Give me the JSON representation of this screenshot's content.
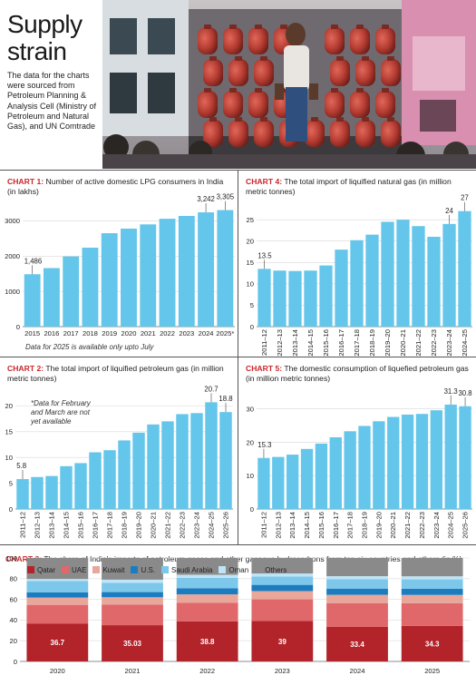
{
  "header": {
    "title_line1": "Supply",
    "title_line2": "strain",
    "subtitle": "The data for the charts were sourced from Petroleum Planning & Analysis Cell (Ministry of Petroleum and Natural Gas), and UN Comtrade"
  },
  "colors": {
    "bar_blue": "#64c6ea",
    "accent_red": "#c8262b",
    "qatar": "#b2232a",
    "uae": "#e0676a",
    "kuwait": "#e8a79a",
    "us": "#1b7cbf",
    "saudi_arabia": "#7dc7ea",
    "oman": "#bfe4f5",
    "others": "#8a8a8a"
  },
  "chart_data": [
    {
      "id": "chart1",
      "type": "bar",
      "label": "CHART 1:",
      "title": "Number of active domestic LPG consumers in India (in lakhs)",
      "categories": [
        "2015",
        "2016",
        "2017",
        "2018",
        "2019",
        "2020",
        "2021",
        "2022",
        "2023",
        "2024",
        "2025*"
      ],
      "values": [
        1486,
        1660,
        1990,
        2240,
        2650,
        2780,
        2900,
        3060,
        3140,
        3242,
        3305
      ],
      "value_labels": {
        "0": "1,486",
        "9": "3,242",
        "10": "3,305"
      },
      "yticks": [
        0,
        1000,
        2000,
        3000
      ],
      "ytick_labels": [
        "0",
        "1000",
        "2000",
        "3000"
      ],
      "ylim": [
        0,
        3500
      ],
      "grid": true,
      "note": "Data for 2025 is available only upto July"
    },
    {
      "id": "chart4",
      "type": "bar",
      "label": "CHART 4:",
      "title": "The total import of liquified natural gas (in million metric tonnes)",
      "categories": [
        "2011–12",
        "2012–13",
        "2013–14",
        "2014–15",
        "2015–16",
        "2016–17",
        "2017–18",
        "2018–19",
        "2019–20",
        "2020–21",
        "2021–22",
        "2022–23",
        "2023–24",
        "2024–25"
      ],
      "values": [
        13.5,
        13.1,
        13.0,
        13.1,
        14.3,
        18.0,
        20.2,
        21.5,
        24.5,
        25.0,
        23.5,
        21.0,
        24.0,
        27.0
      ],
      "value_labels": {
        "0": "13.5",
        "12": "24",
        "13": "27"
      },
      "yticks": [
        0,
        5,
        10,
        15,
        20,
        25
      ],
      "ytick_labels": [
        "0",
        "5",
        "10",
        "15",
        "20",
        "25"
      ],
      "ylim": [
        0,
        28
      ],
      "grid": true
    },
    {
      "id": "chart2",
      "type": "bar",
      "label": "CHART 2:",
      "title": "The total import of liquified petroleum gas (in million metric tonnes)",
      "categories": [
        "2011–12",
        "2012–13",
        "2013–14",
        "2014–15",
        "2015–16",
        "2016–17",
        "2017–18",
        "2018–19",
        "2019–20",
        "2020–21",
        "2021–22",
        "2022–23",
        "2023–24",
        "2024–25",
        "2025–26"
      ],
      "values": [
        5.8,
        6.2,
        6.4,
        8.3,
        8.9,
        11.0,
        11.4,
        13.3,
        14.8,
        16.4,
        17.0,
        18.4,
        18.6,
        20.7,
        18.8
      ],
      "value_labels": {
        "0": "5.8",
        "13": "20.7",
        "14": "18.8"
      },
      "yticks": [
        0,
        5,
        10,
        15,
        20
      ],
      "ytick_labels": [
        "0",
        "5",
        "10",
        "15",
        "20"
      ],
      "ylim": [
        0,
        22
      ],
      "grid": true,
      "note": "*Data for February and March are not yet available"
    },
    {
      "id": "chart5",
      "type": "bar",
      "label": "CHART 5:",
      "title": "The domestic consumption of liquefied petroleum gas (in million metric tonnes)",
      "categories": [
        "2011–12",
        "2012–13",
        "2013–14",
        "2014–15",
        "2015–16",
        "2016–17",
        "2017–18",
        "2018–19",
        "2019–20",
        "2020–21",
        "2021–22",
        "2022–23",
        "2023–24",
        "2024–25",
        "2025–26"
      ],
      "values": [
        15.3,
        15.6,
        16.3,
        18.0,
        19.6,
        21.5,
        23.3,
        24.9,
        26.3,
        27.6,
        28.3,
        28.5,
        29.6,
        31.3,
        30.8
      ],
      "value_labels": {
        "0": "15.3",
        "13": "31.3",
        "14": "30.8"
      },
      "yticks": [
        0,
        10,
        20,
        30
      ],
      "ytick_labels": [
        "0",
        "10",
        "20",
        "30"
      ],
      "ylim": [
        0,
        34
      ],
      "grid": true
    },
    {
      "id": "chart3",
      "type": "bar",
      "stacked": true,
      "label": "CHART 3:",
      "title": "The share of India's imports of petroleum gases and other gaseous hydrocarbons from top six countries and others (in %)",
      "categories": [
        "2020",
        "2021",
        "2022",
        "2023",
        "2024",
        "2025"
      ],
      "yticks": [
        0,
        20,
        40,
        60,
        80,
        100
      ],
      "ytick_labels": [
        "0",
        "20",
        "40",
        "60",
        "80",
        "100"
      ],
      "ylim": [
        0,
        100
      ],
      "legend_position": "top",
      "series": [
        {
          "name": "Qatar",
          "color": "#b2232a",
          "values": [
            36.7,
            35.03,
            38.8,
            39,
            33.4,
            34.3
          ],
          "value_labels": [
            "36.7",
            "35.03",
            "38.8",
            "39",
            "33.4",
            "34.3"
          ]
        },
        {
          "name": "UAE",
          "color": "#e0676a",
          "values": [
            18,
            20,
            18,
            21,
            23,
            22
          ]
        },
        {
          "name": "Kuwait",
          "color": "#e8a79a",
          "values": [
            7,
            7,
            8,
            8,
            8,
            8
          ]
        },
        {
          "name": "U.S.",
          "color": "#1b7cbf",
          "values": [
            5,
            5,
            6,
            6,
            6,
            6
          ]
        },
        {
          "name": "Saudi Arabia",
          "color": "#7dc7ea",
          "values": [
            11,
            9,
            10,
            8,
            9,
            9
          ]
        },
        {
          "name": "Oman",
          "color": "#bfe4f5",
          "values": [
            2,
            3,
            3,
            3,
            3,
            3
          ]
        },
        {
          "name": "Others",
          "color": "#8a8a8a",
          "values": [
            20.3,
            20.97,
            16.2,
            15,
            17.6,
            17.7
          ]
        }
      ]
    }
  ]
}
